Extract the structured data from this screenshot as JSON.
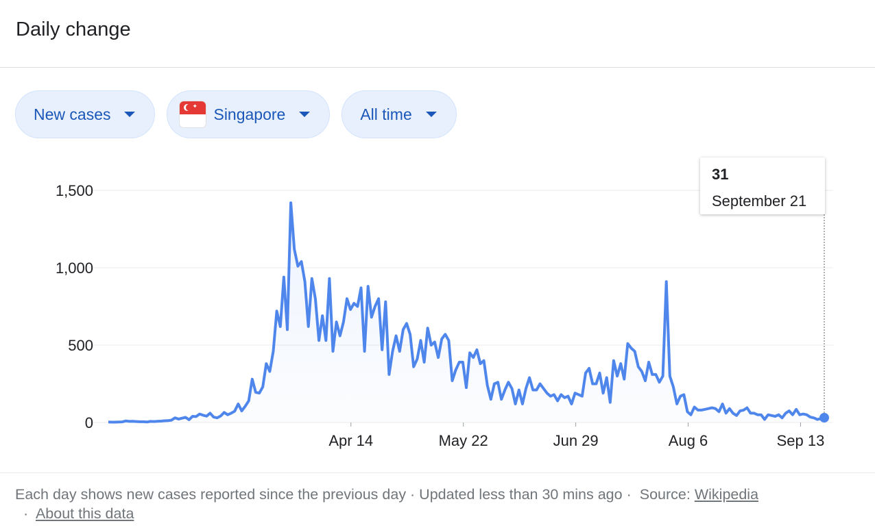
{
  "header": {
    "title": "Daily change"
  },
  "filters": {
    "metric": "New cases",
    "location": "Singapore",
    "range": "All time"
  },
  "tooltip": {
    "value": "31",
    "date": "September 21"
  },
  "footer": {
    "note": "Each day shows new cases reported since the previous day · Updated less than 30 mins ago",
    "source_label": "Source:",
    "source_link": "Wikipedia",
    "about_link": "About this data"
  },
  "colors": {
    "line": "#4f86ec",
    "accent": "#1a57b8",
    "chip_bg": "#e8f0fe"
  },
  "chart_data": {
    "type": "line",
    "title": "",
    "xlabel": "",
    "ylabel": "",
    "ylim": [
      0,
      1500
    ],
    "yticks": [
      0,
      500,
      1000,
      1500
    ],
    "ytick_labels": [
      "0",
      "500",
      "1,000",
      "1,500"
    ],
    "xticks": [
      "Apr 14",
      "May 22",
      "Jun 29",
      "Aug 6",
      "Sep 13"
    ],
    "x_start": "2020-01-23",
    "x_end": "2020-09-21",
    "series": [
      {
        "name": "New cases",
        "values": [
          3,
          2,
          2,
          3,
          4,
          10,
          7,
          8,
          6,
          5,
          5,
          3,
          7,
          6,
          8,
          9,
          11,
          12,
          15,
          30,
          22,
          28,
          33,
          18,
          40,
          38,
          55,
          47,
          41,
          60,
          35,
          30,
          42,
          65,
          50,
          60,
          73,
          120,
          75,
          105,
          140,
          280,
          195,
          190,
          230,
          380,
          330,
          460,
          720,
          620,
          940,
          600,
          1420,
          1120,
          1010,
          1040,
          910,
          620,
          930,
          800,
          530,
          690,
          530,
          930,
          460,
          650,
          560,
          650,
          800,
          730,
          770,
          750,
          870,
          460,
          880,
          680,
          750,
          800,
          470,
          780,
          310,
          460,
          560,
          460,
          600,
          640,
          570,
          360,
          410,
          530,
          390,
          610,
          500,
          520,
          420,
          540,
          570,
          530,
          270,
          340,
          390,
          390,
          225,
          450,
          420,
          470,
          380,
          400,
          240,
          150,
          250,
          260,
          150,
          210,
          260,
          220,
          120,
          210,
          120,
          220,
          290,
          210,
          210,
          250,
          220,
          190,
          170,
          180,
          140,
          180,
          160,
          170,
          120,
          190,
          180,
          170,
          320,
          350,
          250,
          250,
          320,
          190,
          290,
          130,
          400,
          300,
          380,
          280,
          510,
          480,
          460,
          360,
          330,
          270,
          390,
          310,
          310,
          260,
          300,
          910,
          300,
          230,
          120,
          170,
          180,
          70,
          50,
          100,
          80,
          80,
          85,
          90,
          95,
          90,
          70,
          120,
          60,
          90,
          60,
          45,
          75,
          80,
          95,
          60,
          60,
          50,
          50,
          20,
          50,
          45,
          40,
          50,
          30,
          60,
          75,
          50,
          85,
          50,
          55,
          50,
          35,
          30,
          20,
          25,
          31
        ]
      }
    ]
  }
}
